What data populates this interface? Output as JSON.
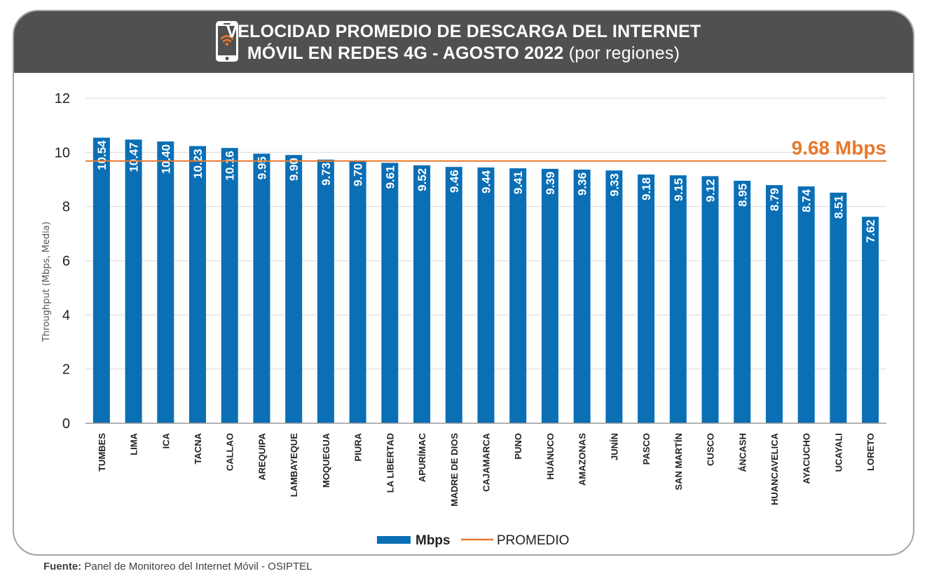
{
  "header": {
    "title_line1": "VELOCIDAD PROMEDIO DE DESCARGA DEL INTERNET",
    "title_line2": "MÓVIL EN REDES 4G - AGOSTO 2022",
    "title_suffix": "(por regiones)",
    "icon": "mobile-phone-wifi-icon"
  },
  "colors": {
    "bar": "#0a6fb5",
    "average_line": "#e8782a",
    "header_bg": "#505050",
    "grid": "#d9d9d9"
  },
  "chart_data": {
    "type": "bar",
    "title": "VELOCIDAD PROMEDIO DE DESCARGA DEL INTERNET MÓVIL EN REDES 4G - AGOSTO 2022 (por regiones)",
    "xlabel": "",
    "ylabel": "Throughput (Mbps, Media)",
    "ylim": [
      0,
      12
    ],
    "yticks": [
      "0",
      "2",
      "4",
      "6",
      "8",
      "10",
      "12"
    ],
    "grid": true,
    "categories": [
      "TUMBES",
      "LIMA",
      "ICA",
      "TACNA",
      "CALLAO",
      "AREQUIPA",
      "LAMBAYEQUE",
      "MOQUEGUA",
      "PIURA",
      "LA LIBERTAD",
      "APURÍMAC",
      "MADRE DE DIOS",
      "CAJAMARCA",
      "PUNO",
      "HUÁNUCO",
      "AMAZONAS",
      "JUNÍN",
      "PASCO",
      "SAN MARTÍN",
      "CUSCO",
      "ÁNCASH",
      "HUANCAVELICA",
      "AYACUCHO",
      "UCAYALI",
      "LORETO"
    ],
    "values": [
      10.54,
      10.47,
      10.4,
      10.23,
      10.16,
      9.95,
      9.9,
      9.73,
      9.7,
      9.61,
      9.52,
      9.46,
      9.44,
      9.41,
      9.39,
      9.36,
      9.33,
      9.18,
      9.15,
      9.12,
      8.95,
      8.79,
      8.74,
      8.51,
      7.62
    ],
    "value_labels": [
      "10.54",
      "10.47",
      "10.40",
      "10.23",
      "10.16",
      "9.95",
      "9.90",
      "9.73",
      "9.70",
      "9.61",
      "9.52",
      "9.46",
      "9.44",
      "9.41",
      "9.39",
      "9.36",
      "9.33",
      "9.18",
      "9.15",
      "9.12",
      "8.95",
      "8.79",
      "8.74",
      "8.51",
      "7.62"
    ],
    "average": {
      "value": 9.68,
      "label": "9.68 Mbps"
    },
    "legend": {
      "position": "bottom",
      "bar_label": "Mbps",
      "line_label": "PROMEDIO"
    }
  },
  "footer": {
    "source_label": "Fuente:",
    "source_text": "Panel de Monitoreo del Internet Móvil - OSIPTEL"
  }
}
